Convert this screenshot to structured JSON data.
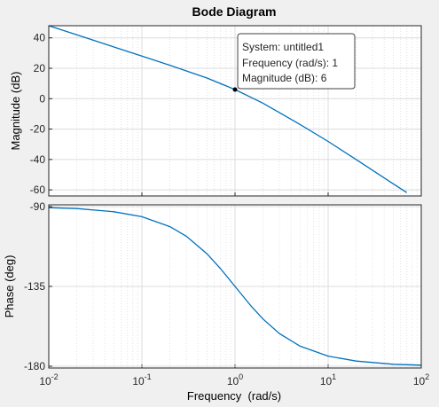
{
  "chart_data": {
    "type": "line",
    "title": "Bode Diagram",
    "xlabel": "Frequency  (rad/s)",
    "x_scale": "log",
    "xlim": [
      0.01,
      100
    ],
    "x_tick_labels": [
      {
        "base": "10",
        "exp": "-2"
      },
      {
        "base": "10",
        "exp": "-1"
      },
      {
        "base": "10",
        "exp": "0"
      },
      {
        "base": "10",
        "exp": "1"
      },
      {
        "base": "10",
        "exp": "2"
      }
    ],
    "grid": true,
    "panels": [
      {
        "id": "magnitude",
        "ylabel": "Magnitude (dB)",
        "ylim": [
          -64,
          48
        ],
        "yticks": [
          -60,
          -40,
          -20,
          0,
          20,
          40
        ],
        "series": [
          {
            "x": [
              0.01,
              0.02,
              0.05,
              0.1,
              0.2,
              0.5,
              1,
              2,
              5,
              10,
              20,
              50,
              70
            ],
            "y": [
              48.0,
              42.0,
              34.0,
              28.0,
              22.0,
              13.6,
              6.0,
              -3.0,
              -17.0,
              -28.1,
              -40.0,
              -56.0,
              -61.8
            ]
          }
        ],
        "datatip": {
          "x": 1,
          "y": 6,
          "lines": [
            "System: untitled1",
            "Frequency (rad/s): 1",
            "Magnitude (dB): 6"
          ]
        }
      },
      {
        "id": "phase",
        "ylabel": "Phase (deg)",
        "ylim": [
          -181,
          -89
        ],
        "yticks": [
          -180,
          -135,
          -90
        ],
        "series": [
          {
            "x": [
              0.01,
              0.02,
              0.05,
              0.1,
              0.2,
              0.3,
              0.5,
              0.7,
              1,
              1.5,
              2,
              3,
              5,
              10,
              20,
              50,
              100
            ],
            "y": [
              -90.6,
              -91.1,
              -92.9,
              -95.7,
              -101.3,
              -106.7,
              -116.6,
              -125.0,
              -135.0,
              -146.3,
              -153.4,
              -161.6,
              -168.7,
              -174.3,
              -177.1,
              -178.9,
              -179.4
            ]
          }
        ]
      }
    ],
    "colors": {
      "line": "#0072bd",
      "axes_background": "#ffffff",
      "figure_background": "#f0f0f0",
      "grid": "#dcdcdc",
      "tip_border": "#404040"
    }
  }
}
